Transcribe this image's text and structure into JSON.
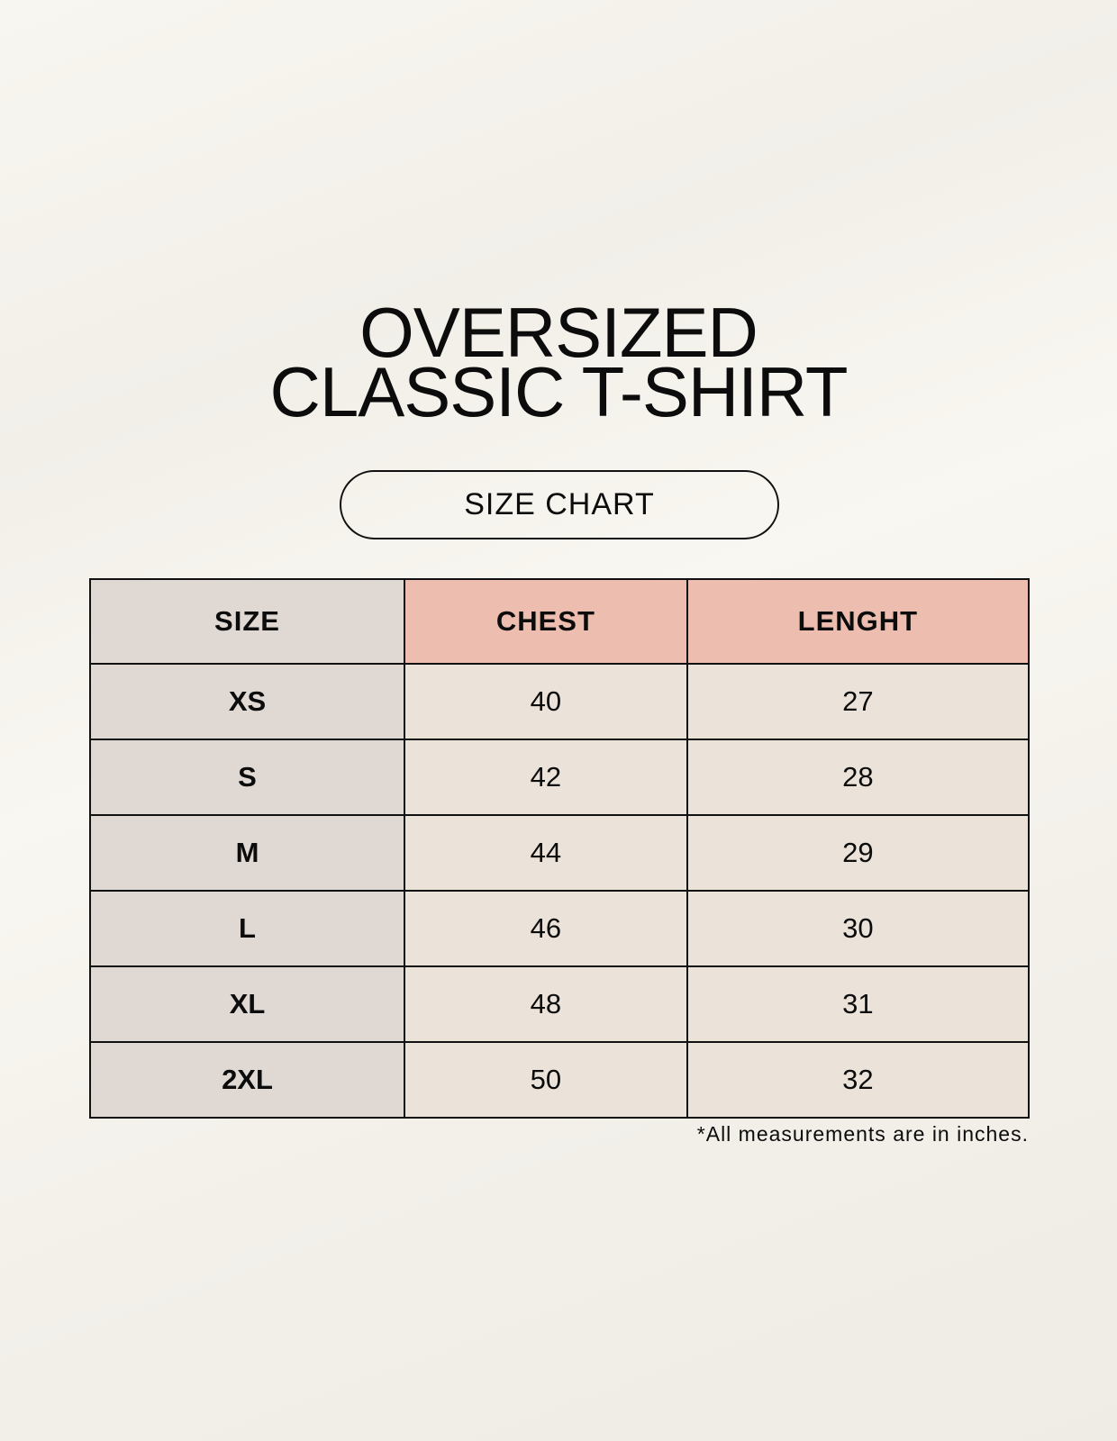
{
  "title_line1": "OVERSIZED",
  "title_line2": "CLASSIC T-SHIRT",
  "badge": "SIZE CHART",
  "table": {
    "headers": [
      "SIZE",
      "CHEST",
      "LENGHT"
    ],
    "rows": [
      [
        "XS",
        "40",
        "27"
      ],
      [
        "S",
        "42",
        "28"
      ],
      [
        "M",
        "44",
        "29"
      ],
      [
        "L",
        "46",
        "30"
      ],
      [
        "XL",
        "48",
        "31"
      ],
      [
        "2XL",
        "50",
        "32"
      ]
    ]
  },
  "footnote": "*All measurements are in inches.",
  "colors": {
    "size_column": "#e0d9d3",
    "header_accent": "#edbdb0",
    "value_cells": "#ebe3d9"
  }
}
